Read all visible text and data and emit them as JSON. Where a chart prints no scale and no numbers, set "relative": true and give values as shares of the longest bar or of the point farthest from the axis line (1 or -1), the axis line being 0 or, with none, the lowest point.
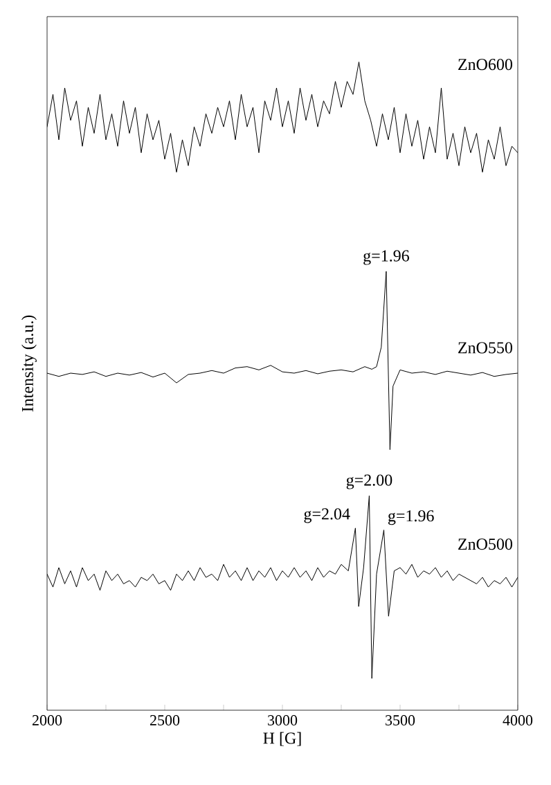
{
  "chart_data": {
    "type": "line",
    "relative": true,
    "xlabel": "H [G]",
    "ylabel": "Intensity (a.u.)",
    "xlim": [
      2000,
      4000
    ],
    "xticks": [
      2000,
      {
        "value": 2250,
        "label": null
      },
      2500,
      {
        "value": 2750,
        "label": null
      },
      3000,
      {
        "value": 3250,
        "label": null
      },
      3500,
      {
        "value": 3750,
        "label": null
      },
      4000
    ],
    "tick_labels": "x",
    "grid": false,
    "legend": false,
    "marker": "none",
    "line_style": "solid",
    "series": [
      {
        "name": "ZnO600",
        "color": "#000000",
        "x": [
          2000,
          2025,
          2050,
          2075,
          2100,
          2125,
          2150,
          2175,
          2200,
          2225,
          2250,
          2275,
          2300,
          2325,
          2350,
          2375,
          2400,
          2425,
          2450,
          2475,
          2500,
          2525,
          2550,
          2575,
          2600,
          2625,
          2650,
          2675,
          2700,
          2725,
          2750,
          2775,
          2800,
          2825,
          2850,
          2875,
          2900,
          2925,
          2950,
          2975,
          3000,
          3025,
          3050,
          3075,
          3100,
          3125,
          3150,
          3175,
          3200,
          3225,
          3250,
          3275,
          3300,
          3325,
          3350,
          3375,
          3400,
          3425,
          3450,
          3475,
          3500,
          3525,
          3550,
          3575,
          3600,
          3625,
          3650,
          3675,
          3700,
          3725,
          3750,
          3775,
          3800,
          3825,
          3850,
          3875,
          3900,
          3925,
          3950,
          3975,
          4000
        ],
        "values": [
          0.9,
          0.95,
          0.88,
          0.96,
          0.91,
          0.94,
          0.87,
          0.93,
          0.89,
          0.95,
          0.88,
          0.92,
          0.87,
          0.94,
          0.89,
          0.93,
          0.86,
          0.92,
          0.88,
          0.91,
          0.85,
          0.89,
          0.83,
          0.88,
          0.84,
          0.9,
          0.87,
          0.92,
          0.89,
          0.93,
          0.9,
          0.94,
          0.88,
          0.95,
          0.9,
          0.93,
          0.86,
          0.94,
          0.91,
          0.96,
          0.9,
          0.94,
          0.89,
          0.96,
          0.91,
          0.95,
          0.9,
          0.94,
          0.92,
          0.97,
          0.93,
          0.97,
          0.95,
          1.0,
          0.94,
          0.91,
          0.87,
          0.92,
          0.88,
          0.93,
          0.86,
          0.92,
          0.87,
          0.91,
          0.85,
          0.9,
          0.86,
          0.96,
          0.85,
          0.89,
          0.84,
          0.9,
          0.86,
          0.89,
          0.83,
          0.88,
          0.85,
          0.9,
          0.84,
          0.87,
          0.86
        ]
      },
      {
        "name": "ZnO550",
        "color": "#000000",
        "x": [
          2000,
          2050,
          2100,
          2150,
          2200,
          2250,
          2300,
          2350,
          2400,
          2450,
          2500,
          2550,
          2600,
          2650,
          2700,
          2750,
          2800,
          2850,
          2900,
          2950,
          3000,
          3050,
          3100,
          3150,
          3200,
          3250,
          3300,
          3350,
          3380,
          3400,
          3420,
          3441,
          3457,
          3470,
          3500,
          3550,
          3600,
          3650,
          3700,
          3750,
          3800,
          3850,
          3900,
          3950,
          4000
        ],
        "values": [
          0.52,
          0.515,
          0.52,
          0.518,
          0.522,
          0.515,
          0.52,
          0.517,
          0.521,
          0.514,
          0.52,
          0.505,
          0.518,
          0.52,
          0.524,
          0.52,
          0.528,
          0.53,
          0.525,
          0.532,
          0.522,
          0.52,
          0.524,
          0.519,
          0.523,
          0.525,
          0.522,
          0.53,
          0.526,
          0.53,
          0.56,
          0.677,
          0.402,
          0.5,
          0.525,
          0.52,
          0.522,
          0.518,
          0.523,
          0.52,
          0.517,
          0.521,
          0.515,
          0.518,
          0.52
        ]
      },
      {
        "name": "ZnO500",
        "color": "#000000",
        "x": [
          2000,
          2025,
          2050,
          2075,
          2100,
          2125,
          2150,
          2175,
          2200,
          2225,
          2250,
          2275,
          2300,
          2325,
          2350,
          2375,
          2400,
          2425,
          2450,
          2475,
          2500,
          2525,
          2550,
          2575,
          2600,
          2625,
          2650,
          2675,
          2700,
          2725,
          2750,
          2775,
          2800,
          2825,
          2850,
          2875,
          2900,
          2925,
          2950,
          2975,
          3000,
          3025,
          3050,
          3075,
          3100,
          3125,
          3150,
          3175,
          3200,
          3225,
          3250,
          3280,
          3310,
          3324,
          3345,
          3369,
          3380,
          3400,
          3431,
          3451,
          3475,
          3500,
          3525,
          3550,
          3575,
          3600,
          3625,
          3650,
          3675,
          3700,
          3725,
          3750,
          3775,
          3800,
          3825,
          3850,
          3875,
          3900,
          3925,
          3950,
          3975,
          4000
        ],
        "values": [
          0.21,
          0.19,
          0.22,
          0.195,
          0.215,
          0.19,
          0.22,
          0.2,
          0.21,
          0.185,
          0.215,
          0.2,
          0.21,
          0.195,
          0.2,
          0.19,
          0.205,
          0.2,
          0.21,
          0.195,
          0.2,
          0.185,
          0.21,
          0.2,
          0.215,
          0.2,
          0.22,
          0.205,
          0.21,
          0.2,
          0.225,
          0.205,
          0.215,
          0.2,
          0.22,
          0.2,
          0.215,
          0.205,
          0.22,
          0.2,
          0.215,
          0.205,
          0.22,
          0.205,
          0.215,
          0.2,
          0.22,
          0.205,
          0.215,
          0.21,
          0.225,
          0.215,
          0.281,
          0.16,
          0.22,
          0.331,
          0.049,
          0.21,
          0.278,
          0.145,
          0.215,
          0.22,
          0.21,
          0.225,
          0.205,
          0.215,
          0.21,
          0.22,
          0.205,
          0.215,
          0.2,
          0.21,
          0.205,
          0.2,
          0.195,
          0.205,
          0.19,
          0.2,
          0.195,
          0.205,
          0.19,
          0.205
        ]
      }
    ],
    "annotations": [
      {
        "text": "g=1.96",
        "x": 3441,
        "y": 0.677
      },
      {
        "text": "g=2.04",
        "x": 3310,
        "y": 0.281
      },
      {
        "text": "g=2.00",
        "x": 3369,
        "y": 0.331
      },
      {
        "text": "g=1.96",
        "x": 3431,
        "y": 0.278
      }
    ]
  }
}
